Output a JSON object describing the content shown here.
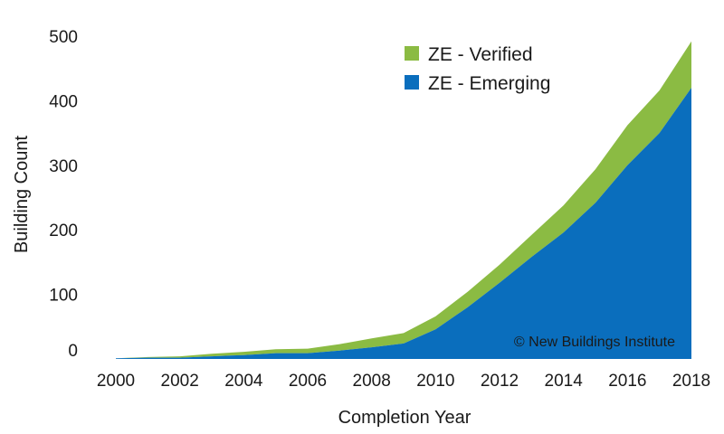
{
  "chart_data": {
    "type": "area",
    "stacked": true,
    "x": [
      2000,
      2001,
      2002,
      2003,
      2004,
      2005,
      2006,
      2007,
      2008,
      2009,
      2010,
      2011,
      2012,
      2013,
      2014,
      2015,
      2016,
      2017,
      2018
    ],
    "series": [
      {
        "name": "ZE - Emerging",
        "color": "#0a6ebd",
        "values": [
          1,
          2,
          2,
          4,
          6,
          9,
          9,
          13,
          18,
          24,
          46,
          80,
          118,
          158,
          196,
          242,
          300,
          350,
          420
        ]
      },
      {
        "name": "ZE - Verified",
        "color": "#8bbb43",
        "values": [
          0,
          1,
          2,
          4,
          5,
          6,
          7,
          10,
          14,
          16,
          20,
          24,
          28,
          34,
          42,
          52,
          62,
          66,
          72
        ]
      }
    ],
    "xlabel": "Completion Year",
    "ylabel": "Building Count",
    "xticks": [
      "2000",
      "2002",
      "2004",
      "2006",
      "2008",
      "2010",
      "2012",
      "2014",
      "2016",
      "2018"
    ],
    "yticks": [
      "0",
      "100",
      "200",
      "300",
      "400",
      "500"
    ],
    "ylim": [
      0,
      500
    ],
    "xlim": [
      2000,
      2018
    ],
    "grid": false,
    "legend_position": "top-right",
    "annotation": "© New Buildings Institute"
  }
}
